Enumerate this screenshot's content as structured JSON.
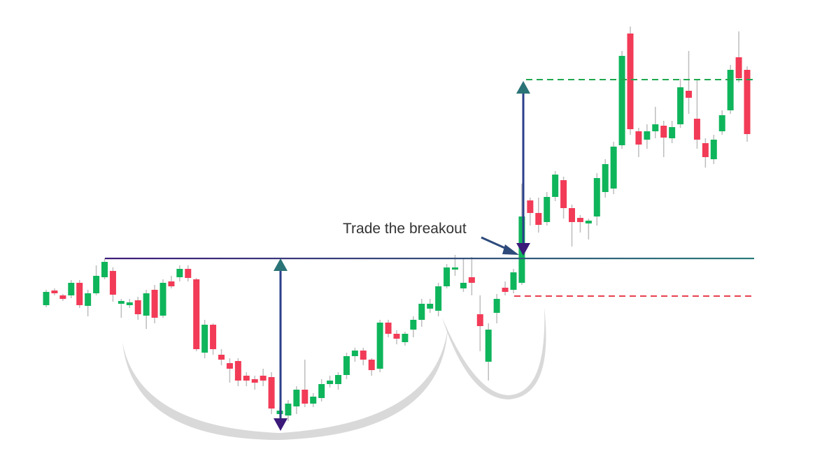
{
  "chart_data": {
    "type": "candlestick",
    "annotation": "Trade the breakout",
    "ylim": [
      0,
      653
    ],
    "up_color": "#0fb55b",
    "down_color": "#f23b57",
    "wick_color": "#bdbdbd",
    "resistance": 283,
    "cup_low": 38,
    "target": 539,
    "stop": 229,
    "open": [
      216,
      237,
      230,
      230,
      248,
      215,
      233,
      256,
      265,
      218,
      216,
      223,
      201,
      238,
      201,
      250,
      256,
      268,
      253,
      148,
      188,
      145,
      133,
      136,
      115,
      110,
      115,
      113,
      60,
      58,
      71,
      95,
      75,
      83,
      103,
      103,
      116,
      143,
      151,
      138,
      125,
      191,
      175,
      163,
      181,
      195,
      211,
      208,
      243,
      267,
      240,
      256,
      203,
      135,
      205,
      241,
      238,
      248,
      366,
      348,
      335,
      371,
      395,
      355,
      341,
      333,
      343,
      378,
      383,
      445,
      605,
      465,
      453,
      465,
      473,
      455,
      475,
      523,
      483,
      448,
      425,
      465,
      495,
      571,
      553
    ],
    "high": [
      238,
      240,
      232,
      252,
      252,
      238,
      273,
      283,
      270,
      225,
      225,
      228,
      238,
      245,
      253,
      258,
      273,
      273,
      255,
      195,
      190,
      153,
      140,
      140,
      120,
      115,
      125,
      120,
      70,
      80,
      100,
      138,
      90,
      110,
      115,
      120,
      148,
      155,
      155,
      140,
      195,
      195,
      180,
      178,
      200,
      225,
      225,
      248,
      275,
      288,
      283,
      285,
      230,
      190,
      232,
      250,
      268,
      390,
      370,
      370,
      378,
      408,
      400,
      360,
      345,
      340,
      405,
      425,
      450,
      580,
      615,
      470,
      475,
      500,
      480,
      480,
      540,
      580,
      540,
      455,
      460,
      495,
      560,
      608,
      558
    ],
    "low": [
      213,
      230,
      222,
      226,
      212,
      200,
      230,
      253,
      221,
      198,
      212,
      195,
      182,
      190,
      198,
      240,
      250,
      250,
      150,
      140,
      145,
      130,
      105,
      100,
      100,
      95,
      100,
      60,
      55,
      50,
      60,
      70,
      70,
      78,
      98,
      95,
      110,
      135,
      130,
      115,
      120,
      170,
      160,
      158,
      170,
      185,
      205,
      200,
      240,
      258,
      235,
      230,
      150,
      108,
      190,
      230,
      233,
      245,
      330,
      320,
      330,
      365,
      340,
      300,
      320,
      310,
      330,
      370,
      375,
      440,
      460,
      428,
      440,
      455,
      428,
      448,
      470,
      490,
      440,
      413,
      418,
      460,
      490,
      535,
      450
    ],
    "close": [
      235,
      233,
      225,
      248,
      216,
      233,
      258,
      278,
      231,
      222,
      220,
      203,
      233,
      198,
      248,
      243,
      268,
      255,
      153,
      188,
      153,
      138,
      125,
      108,
      108,
      105,
      108,
      68,
      65,
      75,
      95,
      75,
      85,
      103,
      108,
      116,
      143,
      151,
      138,
      123,
      191,
      175,
      168,
      175,
      195,
      218,
      218,
      243,
      270,
      270,
      248,
      248,
      186,
      181,
      225,
      235,
      263,
      343,
      348,
      331,
      371,
      403,
      355,
      335,
      335,
      337,
      398,
      418,
      443,
      573,
      468,
      446,
      465,
      475,
      456,
      471,
      528,
      513,
      453,
      428,
      453,
      488,
      553,
      541,
      461
    ]
  }
}
